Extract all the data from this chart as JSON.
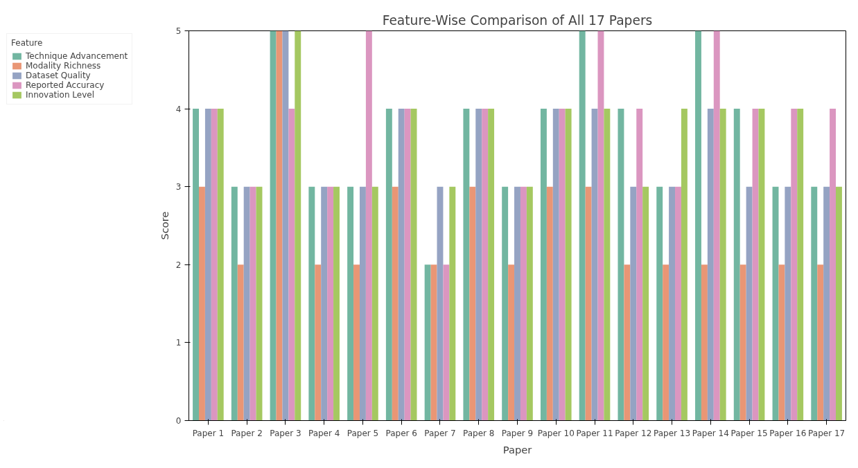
{
  "chart_data": {
    "type": "bar",
    "title": "Feature-Wise Comparison of All 17 Papers",
    "xlabel": "Paper",
    "ylabel": "Score",
    "legend_title": "Feature",
    "categories": [
      "Paper 1",
      "Paper 2",
      "Paper 3",
      "Paper 4",
      "Paper 5",
      "Paper 6",
      "Paper 7",
      "Paper 8",
      "Paper 9",
      "Paper 10",
      "Paper 11",
      "Paper 12",
      "Paper 13",
      "Paper 14",
      "Paper 15",
      "Paper 16",
      "Paper 17"
    ],
    "series": [
      {
        "name": "Technique Advancement",
        "color": "#72b6a1",
        "values": [
          4,
          3,
          5,
          3,
          3,
          4,
          2,
          4,
          3,
          4,
          5,
          4,
          3,
          5,
          4,
          3,
          3
        ]
      },
      {
        "name": "Modality Richness",
        "color": "#e99675",
        "values": [
          3,
          2,
          5,
          2,
          2,
          3,
          2,
          3,
          2,
          3,
          3,
          2,
          2,
          2,
          2,
          2,
          2
        ]
      },
      {
        "name": "Dataset Quality",
        "color": "#95a3c3",
        "values": [
          4,
          3,
          5,
          3,
          3,
          4,
          3,
          4,
          3,
          4,
          4,
          3,
          3,
          4,
          3,
          3,
          3
        ]
      },
      {
        "name": "Reported Accuracy",
        "color": "#db96c0",
        "values": [
          4,
          3,
          4,
          3,
          5,
          4,
          2,
          4,
          3,
          4,
          5,
          4,
          3,
          5,
          4,
          4,
          4
        ]
      },
      {
        "name": "Innovation Level",
        "color": "#a5c861",
        "values": [
          4,
          3,
          5,
          3,
          3,
          4,
          3,
          4,
          3,
          4,
          4,
          3,
          4,
          4,
          4,
          4,
          3
        ]
      }
    ],
    "ylim": [
      0,
      5
    ],
    "yticks": [
      0,
      1,
      2,
      3,
      4,
      5
    ],
    "grid": false,
    "legend": "top left"
  }
}
